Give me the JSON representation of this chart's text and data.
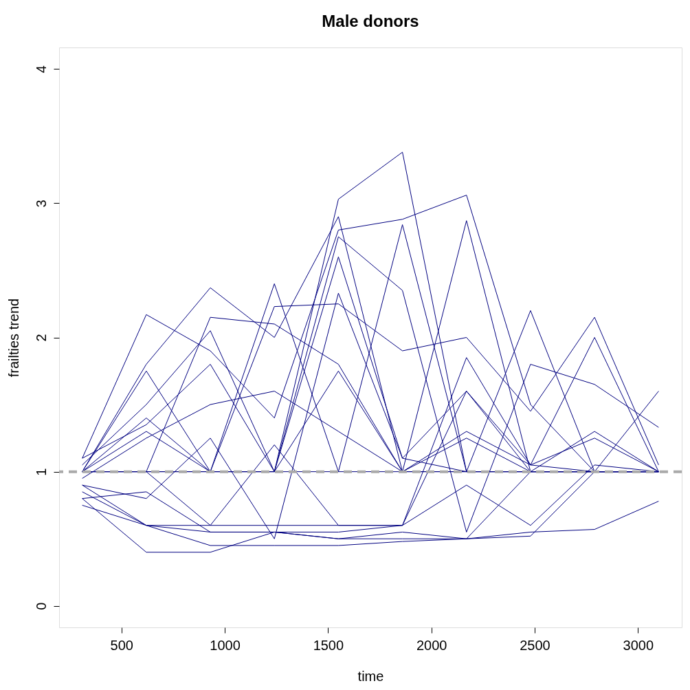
{
  "chart_data": {
    "type": "line",
    "title": "Male donors",
    "xlabel": "time",
    "ylabel": "frailties trend",
    "x": [
      310,
      620,
      930,
      1240,
      1550,
      1860,
      2170,
      2480,
      2790,
      3100
    ],
    "xlim": [
      198,
      3212
    ],
    "xticks": [
      500,
      1000,
      1500,
      2000,
      2500,
      3000
    ],
    "ylim": [
      -0.16,
      4.16
    ],
    "yticks": [
      0,
      1,
      2,
      3,
      4
    ],
    "grid": false,
    "legend": false,
    "marker": "none",
    "line_style": "solid",
    "ref_lines": [
      {
        "axis": "y",
        "value": 1,
        "color": "#aaaaaa",
        "line_style": "dashed"
      }
    ],
    "series": [
      {
        "color": "#000080",
        "values": [
          1.0,
          1.4,
          1.0,
          1.0,
          3.03,
          3.38,
          1.0,
          1.0,
          1.0,
          1.0
        ]
      },
      {
        "color": "#000080",
        "values": [
          1.1,
          2.17,
          1.9,
          1.4,
          2.8,
          2.88,
          3.06,
          1.5,
          1.0,
          1.6
        ]
      },
      {
        "color": "#000080",
        "values": [
          1.0,
          1.8,
          2.37,
          2.0,
          2.9,
          1.0,
          2.87,
          1.0,
          1.0,
          1.0
        ]
      },
      {
        "color": "#000080",
        "values": [
          1.0,
          1.0,
          1.0,
          2.4,
          1.0,
          2.84,
          1.0,
          2.2,
          1.0,
          1.0
        ]
      },
      {
        "color": "#000080",
        "values": [
          0.9,
          0.6,
          0.55,
          0.55,
          0.55,
          0.6,
          1.6,
          1.0,
          1.0,
          1.0
        ]
      },
      {
        "color": "#000080",
        "values": [
          0.8,
          0.4,
          0.4,
          0.55,
          0.5,
          0.5,
          0.5,
          0.55,
          0.57,
          0.78
        ]
      },
      {
        "color": "#000080",
        "values": [
          1.0,
          1.75,
          1.0,
          2.23,
          2.25,
          1.9,
          2.0,
          1.45,
          2.15,
          1.05
        ]
      },
      {
        "color": "#000080",
        "values": [
          1.05,
          1.5,
          2.05,
          1.0,
          2.75,
          2.35,
          0.55,
          1.8,
          1.65,
          1.33
        ]
      },
      {
        "color": "#000080",
        "values": [
          0.85,
          0.6,
          0.6,
          0.6,
          0.6,
          0.6,
          1.85,
          1.05,
          2.0,
          1.0
        ]
      },
      {
        "color": "#000080",
        "values": [
          1.0,
          1.0,
          2.15,
          2.1,
          1.8,
          1.0,
          1.0,
          1.0,
          1.0,
          1.0
        ]
      },
      {
        "color": "#000080",
        "values": [
          0.75,
          0.6,
          0.45,
          0.45,
          0.45,
          0.48,
          0.5,
          0.52,
          1.0,
          1.0
        ]
      },
      {
        "color": "#000080",
        "values": [
          1.0,
          1.3,
          1.0,
          1.0,
          2.6,
          1.1,
          1.0,
          1.0,
          1.3,
          1.0
        ]
      },
      {
        "color": "#000080",
        "values": [
          1.1,
          1.35,
          1.8,
          1.0,
          1.75,
          1.0,
          1.25,
          1.0,
          1.0,
          1.0
        ]
      },
      {
        "color": "#000080",
        "values": [
          0.95,
          1.25,
          1.5,
          1.6,
          1.3,
          1.0,
          1.3,
          1.05,
          1.25,
          1.0
        ]
      },
      {
        "color": "#000080",
        "values": [
          1.0,
          1.0,
          0.6,
          1.2,
          0.6,
          0.6,
          0.9,
          0.6,
          1.05,
          1.0
        ]
      },
      {
        "color": "#000080",
        "values": [
          0.9,
          0.8,
          1.25,
          0.5,
          2.33,
          1.1,
          1.6,
          1.05,
          1.0,
          1.0
        ]
      },
      {
        "color": "#000080",
        "values": [
          1.0,
          1.0,
          1.0,
          1.0,
          1.0,
          1.0,
          1.0,
          1.0,
          1.0,
          1.0
        ]
      },
      {
        "color": "#000080",
        "values": [
          0.8,
          0.85,
          0.55,
          0.55,
          0.5,
          0.55,
          0.5,
          1.0,
          1.0,
          1.0
        ]
      }
    ]
  }
}
